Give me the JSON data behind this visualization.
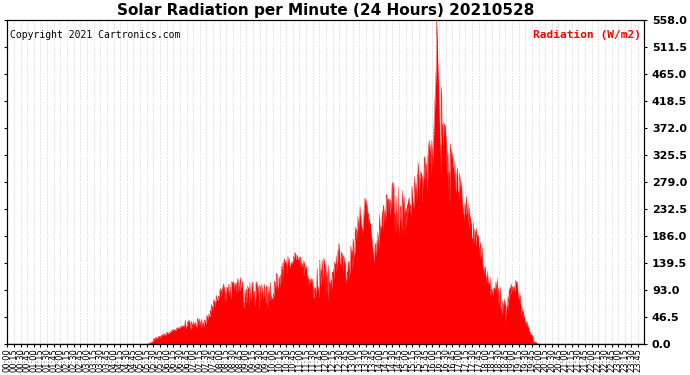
{
  "title": "Solar Radiation per Minute (24 Hours) 20210528",
  "copyright_text": "Copyright 2021 Cartronics.com",
  "ylabel": "Radiation (W/m2)",
  "ylabel_color": "#ff0000",
  "copyright_color": "#000000",
  "fill_color": "#ff0000",
  "line_color": "#ff0000",
  "background_color": "#ffffff",
  "grid_color_h": "#aaaaaa",
  "grid_color_v": "#aaaaaa",
  "dashed_line_color": "#ff0000",
  "ylim": [
    0.0,
    558.0
  ],
  "yticks": [
    0.0,
    46.5,
    93.0,
    139.5,
    186.0,
    232.5,
    279.0,
    325.5,
    372.0,
    418.5,
    465.0,
    511.5,
    558.0
  ],
  "total_minutes": 1440,
  "sunrise_minute": 315,
  "sunset_minute": 1200,
  "peak_minute": 985,
  "peak_value": 558.0,
  "title_fontsize": 11,
  "copyright_fontsize": 7,
  "ylabel_fontsize": 8,
  "ytick_fontsize": 8,
  "xtick_fontsize": 6
}
